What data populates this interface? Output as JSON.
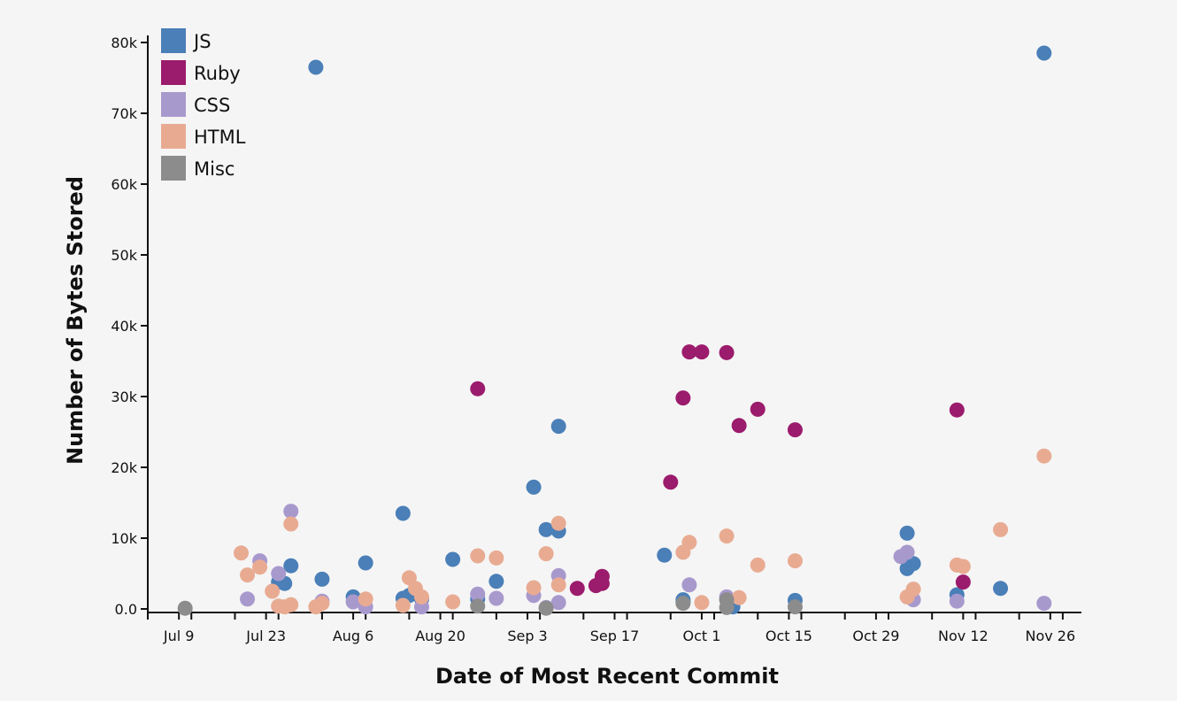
{
  "chart_data": {
    "type": "scatter",
    "xlabel": "Date of Most Recent Commit",
    "ylabel": "Number of Bytes Stored",
    "x_ticks": [
      "Jul 9",
      "Jul 23",
      "Aug 6",
      "Aug 20",
      "Sep 3",
      "Sep 17",
      "Oct 1",
      "Oct 15",
      "Oct 29",
      "Nov 12",
      "Nov 26"
    ],
    "y_ticks": [
      "0.0",
      "10k",
      "20k",
      "30k",
      "40k",
      "50k",
      "60k",
      "70k",
      "80k"
    ],
    "xlim": [
      "Jul 4",
      "Dec 1"
    ],
    "ylim": [
      0,
      81000
    ],
    "legend_position": "top-left",
    "series": [
      {
        "name": "JS",
        "color": "#4a7fb8",
        "points": [
          {
            "x": "Jul 31",
            "y": 76500
          },
          {
            "x": "Nov 25",
            "y": 78500
          },
          {
            "x": "Sep 8",
            "y": 25800
          },
          {
            "x": "Sep 4",
            "y": 17200
          },
          {
            "x": "Aug 14",
            "y": 13500
          },
          {
            "x": "Sep 6",
            "y": 11200
          },
          {
            "x": "Sep 8",
            "y": 11000
          },
          {
            "x": "Nov 3",
            "y": 10700
          },
          {
            "x": "Sep 25",
            "y": 7600
          },
          {
            "x": "Aug 22",
            "y": 7000
          },
          {
            "x": "Aug 8",
            "y": 6500
          },
          {
            "x": "Nov 4",
            "y": 6400
          },
          {
            "x": "Jul 27",
            "y": 6100
          },
          {
            "x": "Nov 3",
            "y": 5700
          },
          {
            "x": "Aug 1",
            "y": 4200
          },
          {
            "x": "Aug 29",
            "y": 3900
          },
          {
            "x": "Jul 25",
            "y": 3800
          },
          {
            "x": "Jul 26",
            "y": 3600
          },
          {
            "x": "Nov 18",
            "y": 2900
          },
          {
            "x": "Nov 11",
            "y": 2000
          },
          {
            "x": "Aug 15",
            "y": 1900
          },
          {
            "x": "Aug 6",
            "y": 1700
          },
          {
            "x": "Aug 14",
            "y": 1500
          },
          {
            "x": "Aug 17",
            "y": 1400
          },
          {
            "x": "Aug 26",
            "y": 1400
          },
          {
            "x": "Sep 28",
            "y": 1300
          },
          {
            "x": "Oct 16",
            "y": 1200
          },
          {
            "x": "Sep 28",
            "y": 1000
          },
          {
            "x": "Oct 6",
            "y": 300
          }
        ]
      },
      {
        "name": "Ruby",
        "color": "#9b1b6c",
        "points": [
          {
            "x": "Sep 29",
            "y": 36300
          },
          {
            "x": "Oct 1",
            "y": 36300
          },
          {
            "x": "Oct 5",
            "y": 36200
          },
          {
            "x": "Aug 26",
            "y": 31100
          },
          {
            "x": "Sep 28",
            "y": 29800
          },
          {
            "x": "Oct 10",
            "y": 28200
          },
          {
            "x": "Nov 11",
            "y": 28100
          },
          {
            "x": "Oct 7",
            "y": 25900
          },
          {
            "x": "Oct 16",
            "y": 25300
          },
          {
            "x": "Sep 26",
            "y": 17900
          },
          {
            "x": "Sep 15",
            "y": 4600
          },
          {
            "x": "Nov 12",
            "y": 3800
          },
          {
            "x": "Sep 15",
            "y": 3600
          },
          {
            "x": "Sep 14",
            "y": 3300
          },
          {
            "x": "Sep 11",
            "y": 2900
          }
        ]
      },
      {
        "name": "CSS",
        "color": "#a899cd",
        "points": [
          {
            "x": "Jul 27",
            "y": 13800
          },
          {
            "x": "Nov 3",
            "y": 8000
          },
          {
            "x": "Nov 2",
            "y": 7400
          },
          {
            "x": "Jul 22",
            "y": 6800
          },
          {
            "x": "Jul 25",
            "y": 5000
          },
          {
            "x": "Sep 8",
            "y": 4700
          },
          {
            "x": "Sep 29",
            "y": 3400
          },
          {
            "x": "Aug 26",
            "y": 2100
          },
          {
            "x": "Sep 4",
            "y": 1900
          },
          {
            "x": "Oct 5",
            "y": 1700
          },
          {
            "x": "Aug 29",
            "y": 1500
          },
          {
            "x": "Jul 20",
            "y": 1400
          },
          {
            "x": "Nov 4",
            "y": 1300
          },
          {
            "x": "Aug 1",
            "y": 1100
          },
          {
            "x": "Nov 11",
            "y": 1100
          },
          {
            "x": "Aug 6",
            "y": 1000
          },
          {
            "x": "Sep 8",
            "y": 900
          },
          {
            "x": "Nov 25",
            "y": 800
          },
          {
            "x": "Aug 8",
            "y": 300
          },
          {
            "x": "Aug 17",
            "y": 300
          },
          {
            "x": "Sep 6",
            "y": 200
          }
        ]
      },
      {
        "name": "HTML",
        "color": "#e8ab92",
        "points": [
          {
            "x": "Nov 25",
            "y": 21600
          },
          {
            "x": "Sep 8",
            "y": 12100
          },
          {
            "x": "Jul 27",
            "y": 12000
          },
          {
            "x": "Nov 18",
            "y": 11200
          },
          {
            "x": "Oct 5",
            "y": 10300
          },
          {
            "x": "Sep 29",
            "y": 9400
          },
          {
            "x": "Jul 19",
            "y": 7900
          },
          {
            "x": "Sep 28",
            "y": 8000
          },
          {
            "x": "Sep 6",
            "y": 7800
          },
          {
            "x": "Aug 26",
            "y": 7500
          },
          {
            "x": "Aug 29",
            "y": 7200
          },
          {
            "x": "Oct 16",
            "y": 6800
          },
          {
            "x": "Oct 10",
            "y": 6200
          },
          {
            "x": "Nov 11",
            "y": 6200
          },
          {
            "x": "Nov 12",
            "y": 6000
          },
          {
            "x": "Jul 22",
            "y": 5900
          },
          {
            "x": "Jul 20",
            "y": 4800
          },
          {
            "x": "Aug 15",
            "y": 4400
          },
          {
            "x": "Sep 8",
            "y": 3400
          },
          {
            "x": "Sep 4",
            "y": 3000
          },
          {
            "x": "Aug 16",
            "y": 2900
          },
          {
            "x": "Nov 4",
            "y": 2800
          },
          {
            "x": "Jul 24",
            "y": 2500
          },
          {
            "x": "Nov 3",
            "y": 1700
          },
          {
            "x": "Aug 17",
            "y": 1700
          },
          {
            "x": "Oct 7",
            "y": 1600
          },
          {
            "x": "Aug 8",
            "y": 1400
          },
          {
            "x": "Aug 22",
            "y": 1000
          },
          {
            "x": "Oct 1",
            "y": 900
          },
          {
            "x": "Aug 1",
            "y": 800
          },
          {
            "x": "Jul 27",
            "y": 600
          },
          {
            "x": "Aug 14",
            "y": 500
          },
          {
            "x": "Jul 25",
            "y": 400
          },
          {
            "x": "Jul 26",
            "y": 300
          },
          {
            "x": "Jul 31",
            "y": 300
          }
        ]
      },
      {
        "name": "Misc",
        "color": "#8c8c8c",
        "points": [
          {
            "x": "Jul 10",
            "y": 100
          },
          {
            "x": "Aug 26",
            "y": 400
          },
          {
            "x": "Sep 6",
            "y": 100
          },
          {
            "x": "Sep 28",
            "y": 800
          },
          {
            "x": "Oct 5",
            "y": 1300
          },
          {
            "x": "Oct 5",
            "y": 200
          },
          {
            "x": "Oct 16",
            "y": 300
          }
        ]
      }
    ]
  }
}
